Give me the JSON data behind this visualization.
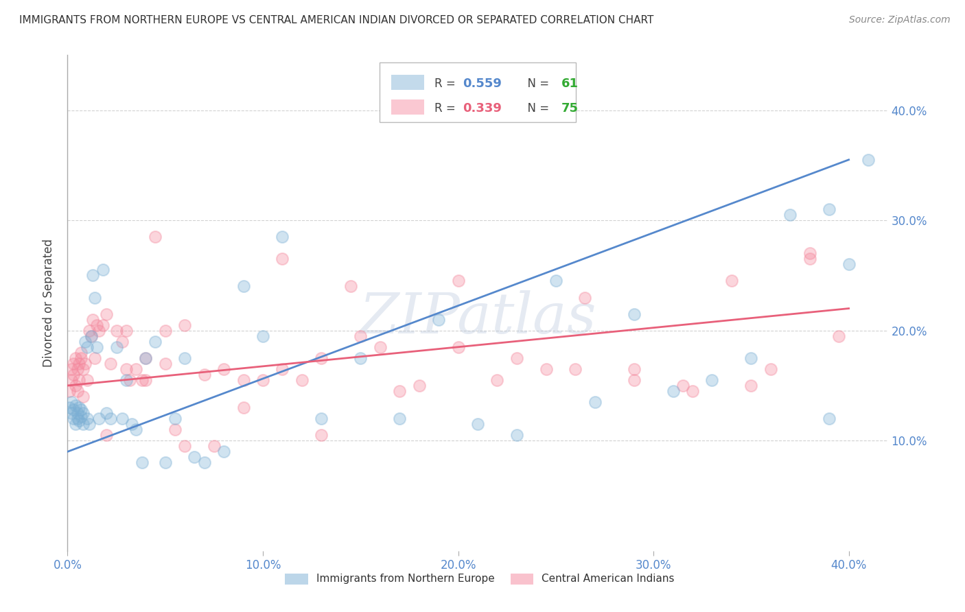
{
  "title": "IMMIGRANTS FROM NORTHERN EUROPE VS CENTRAL AMERICAN INDIAN DIVORCED OR SEPARATED CORRELATION CHART",
  "source": "Source: ZipAtlas.com",
  "xlabel_blue": "Immigrants from Northern Europe",
  "xlabel_pink": "Central American Indians",
  "ylabel": "Divorced or Separated",
  "xlim": [
    0.0,
    0.42
  ],
  "ylim": [
    0.0,
    0.45
  ],
  "xticks": [
    0.0,
    0.1,
    0.2,
    0.3,
    0.4
  ],
  "yticks": [
    0.1,
    0.2,
    0.3,
    0.4
  ],
  "legend_blue_R": "0.559",
  "legend_blue_N": "61",
  "legend_pink_R": "0.339",
  "legend_pink_N": "75",
  "blue_color": "#7BAFD4",
  "pink_color": "#F4879C",
  "line_blue_color": "#5588CC",
  "line_pink_color": "#E8607A",
  "tick_color": "#5588CC",
  "watermark": "ZIPatlas",
  "blue_x": [
    0.001,
    0.002,
    0.002,
    0.003,
    0.003,
    0.004,
    0.004,
    0.005,
    0.005,
    0.006,
    0.006,
    0.007,
    0.007,
    0.008,
    0.008,
    0.009,
    0.01,
    0.01,
    0.011,
    0.012,
    0.013,
    0.014,
    0.015,
    0.016,
    0.018,
    0.02,
    0.022,
    0.025,
    0.028,
    0.03,
    0.033,
    0.035,
    0.038,
    0.04,
    0.045,
    0.05,
    0.055,
    0.06,
    0.065,
    0.07,
    0.08,
    0.09,
    0.1,
    0.11,
    0.13,
    0.15,
    0.17,
    0.19,
    0.21,
    0.23,
    0.25,
    0.27,
    0.29,
    0.31,
    0.33,
    0.35,
    0.37,
    0.39,
    0.4,
    0.41,
    0.39
  ],
  "blue_y": [
    0.13,
    0.125,
    0.135,
    0.128,
    0.12,
    0.132,
    0.115,
    0.125,
    0.12,
    0.13,
    0.118,
    0.122,
    0.128,
    0.115,
    0.125,
    0.19,
    0.185,
    0.12,
    0.115,
    0.195,
    0.25,
    0.23,
    0.185,
    0.12,
    0.255,
    0.125,
    0.12,
    0.185,
    0.12,
    0.155,
    0.115,
    0.11,
    0.08,
    0.175,
    0.19,
    0.08,
    0.12,
    0.175,
    0.085,
    0.08,
    0.09,
    0.24,
    0.195,
    0.285,
    0.12,
    0.175,
    0.12,
    0.21,
    0.115,
    0.105,
    0.245,
    0.135,
    0.215,
    0.145,
    0.155,
    0.175,
    0.305,
    0.12,
    0.26,
    0.355,
    0.31
  ],
  "pink_x": [
    0.001,
    0.002,
    0.002,
    0.003,
    0.003,
    0.004,
    0.004,
    0.005,
    0.005,
    0.006,
    0.006,
    0.007,
    0.007,
    0.008,
    0.008,
    0.009,
    0.01,
    0.011,
    0.012,
    0.013,
    0.014,
    0.015,
    0.016,
    0.018,
    0.02,
    0.022,
    0.025,
    0.028,
    0.03,
    0.032,
    0.035,
    0.038,
    0.04,
    0.045,
    0.05,
    0.055,
    0.06,
    0.07,
    0.08,
    0.09,
    0.1,
    0.11,
    0.12,
    0.13,
    0.145,
    0.16,
    0.18,
    0.2,
    0.22,
    0.245,
    0.265,
    0.29,
    0.315,
    0.34,
    0.36,
    0.38,
    0.395,
    0.38,
    0.35,
    0.32,
    0.29,
    0.26,
    0.23,
    0.2,
    0.17,
    0.15,
    0.13,
    0.11,
    0.09,
    0.075,
    0.06,
    0.05,
    0.04,
    0.03,
    0.02
  ],
  "pink_y": [
    0.145,
    0.155,
    0.165,
    0.16,
    0.17,
    0.175,
    0.15,
    0.165,
    0.145,
    0.155,
    0.17,
    0.175,
    0.18,
    0.165,
    0.14,
    0.17,
    0.155,
    0.2,
    0.195,
    0.21,
    0.175,
    0.205,
    0.2,
    0.205,
    0.215,
    0.17,
    0.2,
    0.19,
    0.2,
    0.155,
    0.165,
    0.155,
    0.175,
    0.285,
    0.2,
    0.11,
    0.095,
    0.16,
    0.165,
    0.13,
    0.155,
    0.265,
    0.155,
    0.105,
    0.24,
    0.185,
    0.15,
    0.245,
    0.155,
    0.165,
    0.23,
    0.165,
    0.15,
    0.245,
    0.165,
    0.27,
    0.195,
    0.265,
    0.15,
    0.145,
    0.155,
    0.165,
    0.175,
    0.185,
    0.145,
    0.195,
    0.175,
    0.165,
    0.155,
    0.095,
    0.205,
    0.17,
    0.155,
    0.165,
    0.105
  ]
}
